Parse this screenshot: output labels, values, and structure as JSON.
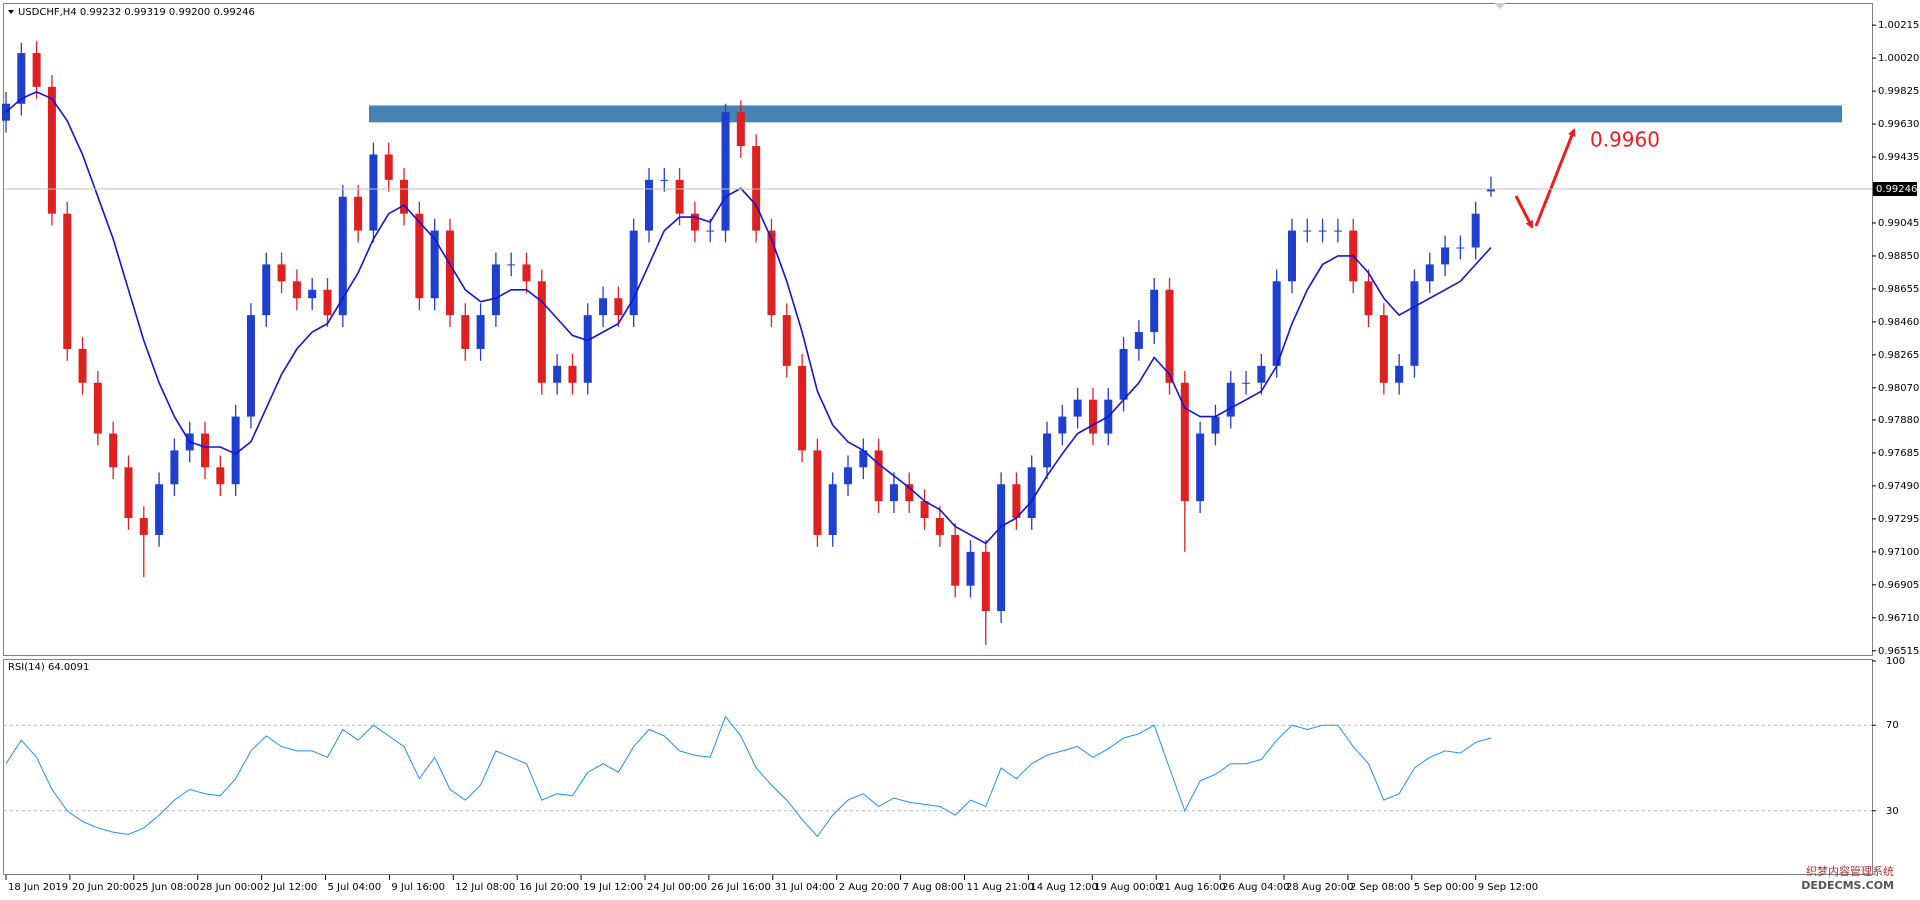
{
  "header": "USDCHF,H4  0.99232 0.99319 0.99200 0.99246",
  "x_labels": [
    "18 Jun 2019",
    "20 Jun 20:00",
    "25 Jun 08:00",
    "28 Jun 00:00",
    "2 Jul 12:00",
    "5 Jul 04:00",
    "9 Jul 16:00",
    "12 Jul 08:00",
    "16 Jul 20:00",
    "19 Jul 12:00",
    "24 Jul 00:00",
    "26 Jul 16:00",
    "31 Jul 04:00",
    "2 Aug 20:00",
    "7 Aug 08:00",
    "11 Aug 21:00",
    "14 Aug 12:00",
    "19 Aug 00:00",
    "21 Aug 16:00",
    "26 Aug 04:00",
    "28 Aug 20:00",
    "2 Sep 08:00",
    "5 Sep 00:00",
    "9 Sep 12:00"
  ],
  "watermark": [
    "织梦内容管理系统",
    "DEDECMS.COM"
  ],
  "chart_data": [
    {
      "type": "candlestick",
      "up_color": "#1f3fcf",
      "down_color": "#e02020",
      "open": [
        0.9965,
        0.9975,
        1.0005,
        0.9985,
        0.991,
        0.983,
        0.981,
        0.978,
        0.976,
        0.973,
        0.972,
        0.975,
        0.977,
        0.978,
        0.976,
        0.975,
        0.979,
        0.985,
        0.988,
        0.987,
        0.986,
        0.9865,
        0.985,
        0.992,
        0.99,
        0.9945,
        0.993,
        0.991,
        0.986,
        0.99,
        0.985,
        0.983,
        0.985,
        0.988,
        0.988,
        0.987,
        0.981,
        0.982,
        0.981,
        0.985,
        0.986,
        0.985,
        0.99,
        0.993,
        0.993,
        0.991,
        0.99,
        0.99,
        0.997,
        0.995,
        0.99,
        0.985,
        0.982,
        0.977,
        0.972,
        0.975,
        0.976,
        0.977,
        0.974,
        0.975,
        0.974,
        0.973,
        0.972,
        0.969,
        0.971,
        0.9675,
        0.975,
        0.973,
        0.976,
        0.978,
        0.979,
        0.98,
        0.978,
        0.98,
        0.983,
        0.984,
        0.9865,
        0.981,
        0.974,
        0.978,
        0.979,
        0.981,
        0.981,
        0.982,
        0.987,
        0.99,
        0.99,
        0.99,
        0.99,
        0.987,
        0.985,
        0.981,
        0.982,
        0.987,
        0.988,
        0.989,
        0.989,
        0.99232
      ],
      "high": [
        0.9982,
        1.0011,
        1.0012,
        0.9992,
        0.9917,
        0.9837,
        0.9817,
        0.9787,
        0.9767,
        0.9737,
        0.9757,
        0.9777,
        0.9787,
        0.9787,
        0.9767,
        0.9797,
        0.9857,
        0.9887,
        0.9887,
        0.9877,
        0.9872,
        0.9872,
        0.9927,
        0.9927,
        0.9952,
        0.9952,
        0.9937,
        0.9917,
        0.9907,
        0.9907,
        0.9857,
        0.9857,
        0.9887,
        0.9887,
        0.9887,
        0.9877,
        0.9827,
        0.9827,
        0.9857,
        0.9867,
        0.9867,
        0.9907,
        0.9937,
        0.9937,
        0.9937,
        0.9917,
        0.9907,
        0.9975,
        0.9977,
        0.9957,
        0.9907,
        0.9857,
        0.9827,
        0.9777,
        0.9757,
        0.9767,
        0.9777,
        0.9777,
        0.9757,
        0.9757,
        0.9747,
        0.9737,
        0.9727,
        0.9717,
        0.9717,
        0.9757,
        0.9757,
        0.9767,
        0.9787,
        0.9797,
        0.9807,
        0.9807,
        0.9807,
        0.9837,
        0.9847,
        0.9872,
        0.9872,
        0.9817,
        0.9787,
        0.9797,
        0.9817,
        0.9817,
        0.9827,
        0.9877,
        0.9907,
        0.9907,
        0.9907,
        0.9907,
        0.9907,
        0.9877,
        0.9857,
        0.9827,
        0.9877,
        0.9887,
        0.9897,
        0.9897,
        0.9917,
        0.99319
      ],
      "low": [
        0.9958,
        0.9968,
        0.9978,
        0.9903,
        0.9823,
        0.9803,
        0.9773,
        0.9753,
        0.9723,
        0.9695,
        0.9713,
        0.9743,
        0.9763,
        0.9753,
        0.9743,
        0.9743,
        0.9783,
        0.9843,
        0.9863,
        0.9853,
        0.9853,
        0.9843,
        0.9843,
        0.9893,
        0.9893,
        0.9923,
        0.9903,
        0.9853,
        0.9853,
        0.9843,
        0.9823,
        0.9823,
        0.9843,
        0.9873,
        0.9863,
        0.9803,
        0.9803,
        0.9803,
        0.9803,
        0.9843,
        0.9843,
        0.9843,
        0.9893,
        0.9923,
        0.9903,
        0.9893,
        0.9893,
        0.9893,
        0.9943,
        0.9893,
        0.9843,
        0.9813,
        0.9763,
        0.9713,
        0.9713,
        0.9743,
        0.9753,
        0.9733,
        0.9733,
        0.9733,
        0.9723,
        0.9713,
        0.9683,
        0.9683,
        0.9655,
        0.9668,
        0.9723,
        0.9723,
        0.9753,
        0.9773,
        0.9783,
        0.9773,
        0.9773,
        0.9793,
        0.9823,
        0.9833,
        0.9803,
        0.971,
        0.9733,
        0.9773,
        0.9783,
        0.9803,
        0.9803,
        0.9813,
        0.9863,
        0.9893,
        0.9893,
        0.9893,
        0.9863,
        0.9843,
        0.9803,
        0.9803,
        0.9813,
        0.9863,
        0.9873,
        0.9883,
        0.9883,
        0.992
      ],
      "close": [
        0.9975,
        1.0005,
        0.9985,
        0.991,
        0.983,
        0.981,
        0.978,
        0.976,
        0.973,
        0.972,
        0.975,
        0.977,
        0.978,
        0.976,
        0.975,
        0.979,
        0.985,
        0.988,
        0.987,
        0.986,
        0.9865,
        0.985,
        0.992,
        0.99,
        0.9945,
        0.993,
        0.991,
        0.986,
        0.99,
        0.985,
        0.983,
        0.985,
        0.988,
        0.988,
        0.987,
        0.981,
        0.982,
        0.981,
        0.985,
        0.986,
        0.985,
        0.99,
        0.993,
        0.993,
        0.991,
        0.99,
        0.99,
        0.997,
        0.995,
        0.99,
        0.985,
        0.982,
        0.977,
        0.972,
        0.975,
        0.976,
        0.977,
        0.974,
        0.975,
        0.974,
        0.973,
        0.972,
        0.969,
        0.971,
        0.9675,
        0.975,
        0.973,
        0.976,
        0.978,
        0.979,
        0.98,
        0.978,
        0.98,
        0.983,
        0.984,
        0.9865,
        0.981,
        0.974,
        0.978,
        0.979,
        0.981,
        0.981,
        0.982,
        0.987,
        0.99,
        0.99,
        0.99,
        0.99,
        0.987,
        0.985,
        0.981,
        0.982,
        0.987,
        0.988,
        0.989,
        0.989,
        0.991,
        0.99246
      ],
      "ma": {
        "color": "#1414d8",
        "values": [
          0.997,
          0.9978,
          0.9982,
          0.9978,
          0.9965,
          0.9945,
          0.992,
          0.9895,
          0.9865,
          0.9835,
          0.981,
          0.979,
          0.9775,
          0.9772,
          0.9772,
          0.9768,
          0.9775,
          0.9795,
          0.9815,
          0.983,
          0.984,
          0.9845,
          0.986,
          0.9875,
          0.9895,
          0.991,
          0.9915,
          0.9905,
          0.9895,
          0.988,
          0.9865,
          0.9858,
          0.986,
          0.9865,
          0.9865,
          0.9858,
          0.9848,
          0.9838,
          0.9835,
          0.984,
          0.9845,
          0.986,
          0.988,
          0.99,
          0.9908,
          0.9908,
          0.9905,
          0.992,
          0.9925,
          0.9915,
          0.9895,
          0.987,
          0.984,
          0.9805,
          0.9785,
          0.9775,
          0.977,
          0.9762,
          0.9755,
          0.9748,
          0.974,
          0.9735,
          0.9725,
          0.972,
          0.9715,
          0.9725,
          0.973,
          0.974,
          0.9755,
          0.9768,
          0.978,
          0.9785,
          0.979,
          0.98,
          0.981,
          0.9825,
          0.9815,
          0.9795,
          0.979,
          0.979,
          0.9795,
          0.98,
          0.9805,
          0.982,
          0.9845,
          0.9865,
          0.988,
          0.9885,
          0.9885,
          0.9875,
          0.986,
          0.985,
          0.9855,
          0.986,
          0.9865,
          0.987,
          0.988,
          0.989
        ]
      },
      "ylim": [
        0.9649,
        1.0034
      ],
      "yticks": [
        0.96515,
        {
          "value": 0.9671,
          "label": "0.96710"
        },
        0.96905,
        {
          "value": 0.971,
          "label": "0.97100"
        },
        0.97295,
        {
          "value": 0.9749,
          "label": "0.97490"
        },
        0.97685,
        {
          "value": 0.9788,
          "label": "0.97880"
        },
        {
          "value": 0.9807,
          "label": "0.98070"
        },
        0.98265,
        {
          "value": 0.9846,
          "label": "0.98460"
        },
        0.98655,
        {
          "value": 0.9885,
          "label": "0.98850"
        },
        0.99045,
        0.99435,
        {
          "value": 0.9963,
          "label": "0.99630"
        },
        0.99825,
        {
          "value": 1.0002,
          "label": "1.00020"
        },
        1.00215
      ],
      "last_price": 0.99246,
      "zone": [
        0.9964,
        0.9974
      ],
      "zone_color": "#4682b4",
      "annotation": "0.9960"
    },
    {
      "type": "line",
      "title": "RSI(14) 64.0091",
      "color": "#1e90ff",
      "values": [
        52,
        63,
        55,
        40,
        30,
        25,
        22,
        20,
        19,
        22,
        28,
        35,
        40,
        38,
        37,
        45,
        58,
        65,
        60,
        58,
        58,
        55,
        68,
        63,
        70,
        65,
        60,
        45,
        55,
        40,
        35,
        42,
        58,
        55,
        52,
        35,
        38,
        37,
        48,
        52,
        48,
        60,
        68,
        65,
        58,
        56,
        55,
        74,
        65,
        50,
        42,
        35,
        26,
        18,
        28,
        35,
        38,
        32,
        36,
        34,
        33,
        32,
        28,
        35,
        32,
        50,
        45,
        52,
        56,
        58,
        60,
        55,
        59,
        64,
        66,
        70,
        50,
        30,
        44,
        47,
        52,
        52,
        54,
        63,
        70,
        68,
        70,
        70,
        60,
        52,
        35,
        38,
        50,
        55,
        58,
        57,
        62,
        64.0091
      ],
      "ylim": [
        0,
        100
      ],
      "yticks": [
        30,
        70,
        100
      ],
      "grid_levels": [
        30,
        70
      ]
    }
  ]
}
